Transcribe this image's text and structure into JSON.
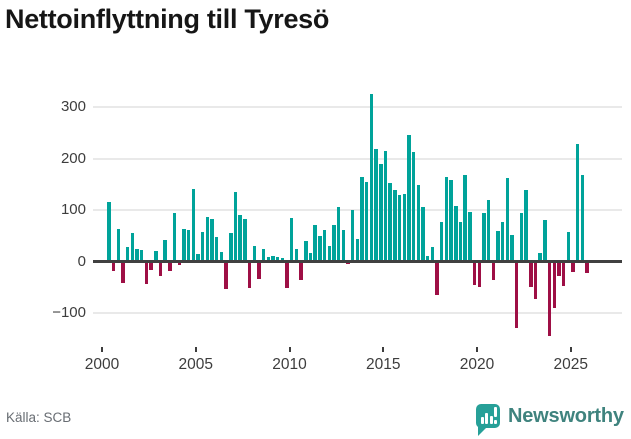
{
  "title": "Nettoinflyttning till Tyresö",
  "footer": {
    "source": "Källa: SCB",
    "brand": "Newsworthy"
  },
  "colors": {
    "positive": "#00a39a",
    "negative": "#9e0f45",
    "grid": "#e9e9e9",
    "zero_line": "#404040",
    "axis_text": "#3d3d3d",
    "title_text": "#161616",
    "source_text": "#686d73",
    "brand_text": "#3f837e",
    "brand_icon_bg": "#27a098"
  },
  "chart_data": {
    "type": "bar",
    "title": "Nettoinflyttning till Tyresö",
    "ylabel": "",
    "xlabel": "",
    "frequency": "quarterly",
    "x_start": "2000 Q2",
    "x_end": "2025 Q4",
    "x_ticks": [
      2000,
      2005,
      2010,
      2015,
      2020,
      2025
    ],
    "y_ticks": [
      300,
      200,
      100,
      0,
      -100
    ],
    "y_tick_labels": [
      "300",
      "200",
      "100",
      "0",
      "−100"
    ],
    "ylim": [
      -170,
      345
    ],
    "grid": "horizontal light gridlines, dark zero baseline",
    "legend_position": "none",
    "source": "SCB",
    "values": [
      115,
      -18,
      64,
      -41,
      29,
      56,
      25,
      23,
      -44,
      -17,
      21,
      -29,
      41,
      -18,
      95,
      -6,
      63,
      62,
      140,
      15,
      58,
      87,
      82,
      48,
      19,
      -54,
      56,
      135,
      90,
      82,
      -52,
      31,
      -34,
      24,
      9,
      10,
      8,
      6,
      -52,
      84,
      24,
      -35,
      40,
      17,
      70,
      50,
      62,
      31,
      70,
      105,
      61,
      -5,
      100,
      43,
      164,
      155,
      325,
      219,
      190,
      214,
      152,
      139,
      129,
      132,
      245,
      213,
      148,
      106,
      10,
      29,
      -66,
      77,
      164,
      159,
      108,
      77,
      168,
      97,
      -45,
      -50,
      95,
      119,
      -35,
      60,
      77,
      163,
      52,
      -130,
      95,
      139,
      -49,
      -72,
      17,
      81,
      -144,
      -90,
      -28,
      -48,
      58,
      -21,
      229,
      167,
      -23
    ]
  }
}
